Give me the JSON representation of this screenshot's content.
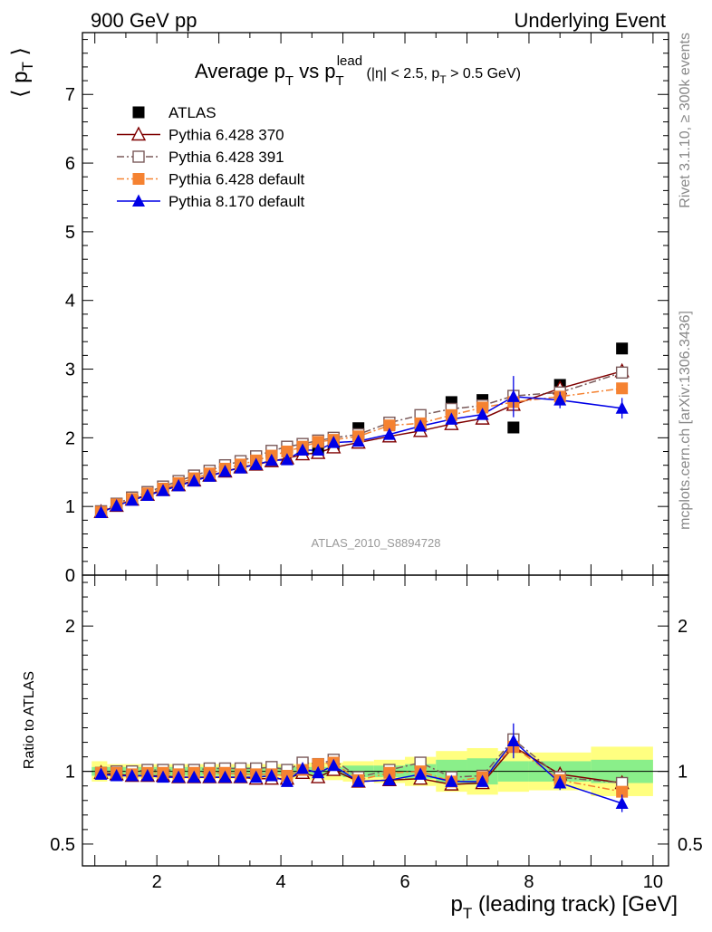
{
  "header": {
    "left": "900 GeV pp",
    "right": "Underlying Event"
  },
  "side_texts": {
    "rivet": "Rivet 3.1.10, ≥ 300k events",
    "mcplots": "mcplots.cern.ch [arXiv:1306.3436]"
  },
  "analysis_tag": "ATLAS_2010_S8894728",
  "chart_data": [
    {
      "panel": "main",
      "type": "scatter",
      "title": "Average pT vs pTlead (|η| < 2.5, pT > 0.5 GeV)",
      "title_parts": {
        "main_a": "Average p",
        "sub_a": "T",
        "main_b": " vs p",
        "sub_b": "T",
        "sup_b": "lead",
        "cuts_a": " (|η| < 2.5, p",
        "cuts_sub": "T",
        "cuts_b": " > 0.5 GeV)"
      },
      "ylabel": "⟨ pT ⟩",
      "ylabel_parts": {
        "open": "⟨ p",
        "sub": "T",
        "close": " ⟩"
      },
      "xlim": [
        0.8,
        10.25
      ],
      "ylim": [
        0,
        7.9
      ],
      "yticks": [
        0,
        1,
        2,
        3,
        4,
        5,
        6,
        7
      ],
      "x": [
        1.1,
        1.35,
        1.6,
        1.85,
        2.1,
        2.35,
        2.6,
        2.85,
        3.1,
        3.35,
        3.6,
        3.85,
        4.1,
        4.35,
        4.6,
        4.85,
        5.25,
        5.75,
        6.25,
        6.75,
        7.25,
        7.75,
        8.5,
        9.5
      ],
      "legend": [
        {
          "key": "atlas",
          "label": "ATLAS"
        },
        {
          "key": "p370",
          "label": "Pythia 6.428 370"
        },
        {
          "key": "p391",
          "label": "Pythia 6.428 391"
        },
        {
          "key": "p6def",
          "label": "Pythia 6.428 default"
        },
        {
          "key": "p8def",
          "label": "Pythia 8.170 default"
        }
      ],
      "series": [
        {
          "key": "atlas",
          "name": "ATLAS",
          "color": "#000000",
          "marker": "filled-square",
          "line": "none",
          "values": [
            0.93,
            1.04,
            1.13,
            1.2,
            1.28,
            1.36,
            1.43,
            1.5,
            1.57,
            1.63,
            1.7,
            1.78,
            1.85,
            1.85,
            1.84,
            1.86,
            2.14,
            2.2,
            2.2,
            2.52,
            2.55,
            2.15,
            2.77,
            3.3
          ]
        },
        {
          "key": "p370",
          "name": "Pythia 6.428 370",
          "color": "#7f0000",
          "marker": "open-triangle",
          "line": "solid",
          "values": [
            0.92,
            1.01,
            1.1,
            1.17,
            1.24,
            1.31,
            1.38,
            1.45,
            1.51,
            1.57,
            1.61,
            1.66,
            1.7,
            1.76,
            1.78,
            1.86,
            1.93,
            2.02,
            2.1,
            2.2,
            2.28,
            2.48,
            2.72,
            2.97
          ]
        },
        {
          "key": "p391",
          "name": "Pythia 6.428 391",
          "color": "#7a5a5a",
          "marker": "open-square",
          "line": "dashdot",
          "values": [
            0.93,
            1.04,
            1.13,
            1.21,
            1.29,
            1.37,
            1.45,
            1.52,
            1.6,
            1.66,
            1.73,
            1.81,
            1.87,
            1.91,
            1.96,
            2.0,
            2.05,
            2.22,
            2.33,
            2.42,
            2.47,
            2.61,
            2.66,
            2.95
          ]
        },
        {
          "key": "p6def",
          "name": "Pythia 6.428 default",
          "color": "#f58231",
          "marker": "filled-square",
          "line": "dashdot",
          "values": [
            0.92,
            1.03,
            1.11,
            1.19,
            1.26,
            1.34,
            1.41,
            1.48,
            1.55,
            1.61,
            1.67,
            1.74,
            1.8,
            1.87,
            1.94,
            1.97,
            2.02,
            2.18,
            2.21,
            2.33,
            2.44,
            2.52,
            2.6,
            2.72
          ]
        },
        {
          "key": "p8def",
          "name": "Pythia 8.170 default",
          "color": "#0000e6",
          "marker": "filled-triangle",
          "line": "solid",
          "values": [
            0.91,
            1.01,
            1.09,
            1.16,
            1.23,
            1.3,
            1.37,
            1.44,
            1.51,
            1.56,
            1.61,
            1.67,
            1.68,
            1.82,
            1.82,
            1.93,
            1.95,
            2.05,
            2.17,
            2.27,
            2.34,
            2.6,
            2.55,
            2.43
          ]
        }
      ]
    },
    {
      "panel": "ratio",
      "type": "scatter",
      "xlabel": "pT (leading track) [GeV]",
      "xlabel_parts": {
        "main": "p",
        "sub": "T",
        "rest": " (leading track) [GeV]"
      },
      "ylabel": "Ratio to ATLAS",
      "xlim": [
        0.8,
        10.25
      ],
      "ylim": [
        0.35,
        2.35
      ],
      "yticks": [
        0.5,
        1,
        2
      ],
      "ytick_labels": [
        "0.5",
        "1",
        "2"
      ],
      "xticks": [
        2,
        4,
        6,
        8,
        10
      ],
      "xtick_labels": [
        "2",
        "4",
        "6",
        "8",
        "10"
      ],
      "x": [
        1.1,
        1.35,
        1.6,
        1.85,
        2.1,
        2.35,
        2.6,
        2.85,
        3.1,
        3.35,
        3.6,
        3.85,
        4.1,
        4.35,
        4.6,
        4.85,
        5.25,
        5.75,
        6.25,
        6.75,
        7.25,
        7.75,
        8.5,
        9.5
      ],
      "series": [
        {
          "key": "p370",
          "name": "Pythia 6.428 370",
          "color": "#7f0000",
          "marker": "open-triangle",
          "line": "solid",
          "values": [
            0.99,
            0.98,
            0.97,
            0.97,
            0.97,
            0.96,
            0.96,
            0.96,
            0.96,
            0.96,
            0.95,
            0.95,
            0.95,
            0.99,
            0.96,
            1.01,
            0.93,
            0.94,
            0.95,
            0.91,
            0.92,
            1.17,
            0.98,
            0.92
          ]
        },
        {
          "key": "p391",
          "name": "Pythia 6.428 391",
          "color": "#7a5a5a",
          "marker": "open-square",
          "line": "dashdot",
          "values": [
            0.99,
            1.0,
            1.0,
            1.01,
            1.01,
            1.01,
            1.01,
            1.02,
            1.02,
            1.02,
            1.02,
            1.03,
            1.01,
            1.06,
            1.05,
            1.08,
            0.96,
            1.01,
            1.06,
            0.96,
            0.97,
            1.22,
            0.96,
            0.92
          ]
        },
        {
          "key": "p6def",
          "name": "Pythia 6.428 default",
          "color": "#f58231",
          "marker": "filled-square",
          "line": "dashdot",
          "values": [
            0.99,
            0.99,
            0.98,
            0.99,
            0.99,
            0.98,
            0.99,
            0.99,
            0.99,
            0.98,
            0.98,
            0.98,
            0.97,
            1.01,
            1.05,
            1.06,
            0.94,
            0.99,
            1.0,
            0.93,
            0.96,
            1.17,
            0.94,
            0.86
          ]
        },
        {
          "key": "p8def",
          "name": "Pythia 8.170 default",
          "color": "#0000e6",
          "marker": "filled-triangle",
          "line": "solid",
          "values": [
            0.98,
            0.97,
            0.97,
            0.97,
            0.96,
            0.96,
            0.96,
            0.96,
            0.96,
            0.96,
            0.96,
            0.97,
            0.93,
            1.02,
            0.99,
            1.04,
            0.93,
            0.94,
            0.98,
            0.93,
            0.93,
            1.21,
            0.92,
            0.78
          ]
        }
      ],
      "bands": {
        "x_edges": [
          0.95,
          1.2,
          1.45,
          1.7,
          1.95,
          2.2,
          2.45,
          2.7,
          2.95,
          3.2,
          3.45,
          3.7,
          3.95,
          4.2,
          4.45,
          4.7,
          5.0,
          5.5,
          6.0,
          6.5,
          7.0,
          7.5,
          8.0,
          9.0,
          10.0
        ],
        "yellow_half": [
          0.07,
          0.05,
          0.05,
          0.05,
          0.05,
          0.05,
          0.05,
          0.05,
          0.05,
          0.05,
          0.05,
          0.05,
          0.05,
          0.05,
          0.06,
          0.06,
          0.07,
          0.08,
          0.1,
          0.14,
          0.16,
          0.14,
          0.13,
          0.17
        ],
        "green_half": [
          0.03,
          0.03,
          0.03,
          0.03,
          0.03,
          0.03,
          0.03,
          0.03,
          0.03,
          0.03,
          0.03,
          0.03,
          0.03,
          0.03,
          0.03,
          0.03,
          0.04,
          0.04,
          0.05,
          0.08,
          0.09,
          0.07,
          0.07,
          0.08
        ],
        "yellow_color": "#ffff80",
        "green_color": "#8aef8a"
      }
    }
  ]
}
